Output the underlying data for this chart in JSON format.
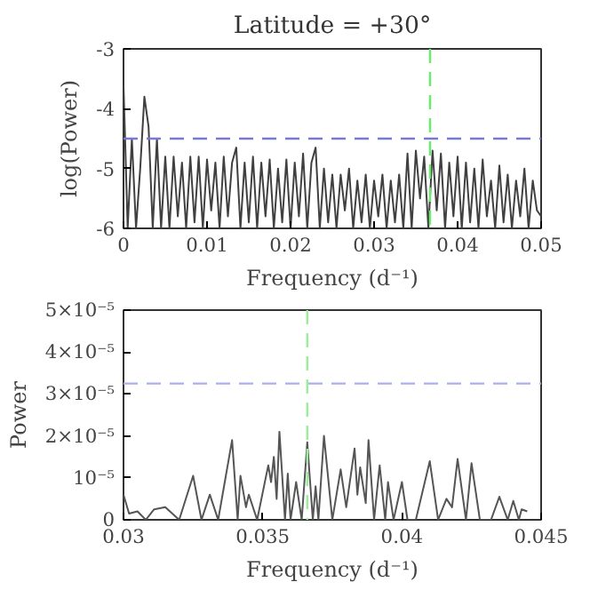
{
  "chart_data": [
    {
      "type": "line",
      "title": "Latitude = +30°",
      "xlabel": "Frequency (d⁻¹)",
      "ylabel": "log(Power)",
      "xlim": [
        0,
        0.05
      ],
      "ylim": [
        -6,
        -3
      ],
      "xticks": [
        {
          "value": 0,
          "label": "0"
        },
        0.01,
        0.02,
        0.03,
        0.04,
        0.05
      ],
      "yticks": [
        -6,
        -5,
        -4,
        -3
      ],
      "line_style": "solid",
      "series": [
        {
          "color": "#404040",
          "x": [
            0,
            0.0005,
            0.001,
            0.0015,
            0.002,
            0.0025,
            0.003,
            0.0035,
            0.004,
            0.0045,
            0.005,
            0.0055,
            0.006,
            0.0065,
            0.007,
            0.0075,
            0.008,
            0.0085,
            0.009,
            0.0095,
            0.01,
            0.0105,
            0.011,
            0.0115,
            0.012,
            0.0125,
            0.013,
            0.0135,
            0.014,
            0.0145,
            0.015,
            0.0155,
            0.016,
            0.0165,
            0.017,
            0.0175,
            0.018,
            0.0185,
            0.019,
            0.0195,
            0.02,
            0.0205,
            0.021,
            0.0215,
            0.022,
            0.0225,
            0.023,
            0.0235,
            0.024,
            0.0245,
            0.025,
            0.0255,
            0.026,
            0.0265,
            0.027,
            0.0275,
            0.028,
            0.0285,
            0.029,
            0.0295,
            0.03,
            0.0305,
            0.031,
            0.0315,
            0.032,
            0.0325,
            0.033,
            0.0335,
            0.034,
            0.0345,
            0.035,
            0.0355,
            0.036,
            0.0365,
            0.037,
            0.0375,
            0.038,
            0.0385,
            0.039,
            0.0395,
            0.04,
            0.0405,
            0.041,
            0.0415,
            0.042,
            0.0425,
            0.043,
            0.0435,
            0.044,
            0.0445,
            0.045,
            0.0455,
            0.046,
            0.0465,
            0.047,
            0.0475,
            0.048,
            0.0485,
            0.049,
            0.0495,
            0.05
          ],
          "values": [
            -3.6,
            -6,
            -4.5,
            -6,
            -5.0,
            -3.8,
            -4.3,
            -6,
            -4.5,
            -6,
            -4.8,
            -6,
            -4.8,
            -5.8,
            -4.9,
            -6,
            -4.8,
            -5.9,
            -4.8,
            -6,
            -4.85,
            -5.7,
            -4.9,
            -6,
            -4.8,
            -5.8,
            -4.9,
            -4.65,
            -6,
            -4.9,
            -5.9,
            -4.8,
            -6,
            -4.9,
            -5.8,
            -4.85,
            -6,
            -5.0,
            -5.9,
            -4.85,
            -6,
            -4.9,
            -5.8,
            -4.75,
            -6,
            -4.9,
            -4.65,
            -6,
            -5.0,
            -5.9,
            -5.1,
            -6,
            -5.1,
            -5.7,
            -5.0,
            -6,
            -5.2,
            -5.9,
            -5.1,
            -6,
            -5.2,
            -5.8,
            -5.1,
            -6,
            -5.2,
            -5.9,
            -5.1,
            -6,
            -4.75,
            -6,
            -4.7,
            -5.5,
            -4.8,
            -6,
            -4.7,
            -5.7,
            -4.75,
            -6,
            -4.9,
            -5.8,
            -4.8,
            -6,
            -4.9,
            -5.9,
            -5.0,
            -6,
            -4.85,
            -5.8,
            -5.2,
            -6,
            -4.95,
            -5.9,
            -5.1,
            -6,
            -5.2,
            -5.8,
            -5.0,
            -6,
            -5.2,
            -5.7,
            -5.8
          ]
        }
      ],
      "ref_lines": [
        {
          "axis": "y",
          "value": -4.5,
          "color": "#7777dd",
          "line_style": "dashed"
        },
        {
          "axis": "x",
          "value": 0.0367,
          "color": "#66ee66",
          "line_style": "dashed"
        }
      ]
    },
    {
      "type": "line",
      "xlabel": "Frequency (d⁻¹)",
      "ylabel": "Power",
      "xlim": [
        0.03,
        0.045
      ],
      "ylim": [
        0,
        5e-05
      ],
      "xticks": [
        0.03,
        0.035,
        0.04,
        0.045
      ],
      "yticks": [
        {
          "value": 0,
          "label": "0"
        },
        {
          "value": 1e-05,
          "label": "10⁻⁵"
        },
        {
          "value": 2e-05,
          "label": "2×10⁻⁵"
        },
        {
          "value": 3e-05,
          "label": "3×10⁻⁵"
        },
        {
          "value": 4e-05,
          "label": "4×10⁻⁵"
        },
        {
          "value": 5e-05,
          "label": "5×10⁻⁵"
        }
      ],
      "line_style": "solid",
      "series": [
        {
          "color": "#555555",
          "x": [
            0.03,
            0.0302,
            0.0305,
            0.0308,
            0.0311,
            0.0315,
            0.032,
            0.0325,
            0.0328,
            0.0331,
            0.0334,
            0.0339,
            0.0341,
            0.0342,
            0.0344,
            0.0345,
            0.0348,
            0.0352,
            0.0353,
            0.0354,
            0.0355,
            0.0356,
            0.0358,
            0.0359,
            0.036,
            0.0362,
            0.0364,
            0.0366,
            0.0368,
            0.0369,
            0.037,
            0.0372,
            0.0375,
            0.0378,
            0.038,
            0.0383,
            0.0384,
            0.0385,
            0.0387,
            0.0388,
            0.039,
            0.0392,
            0.0394,
            0.0395,
            0.0397,
            0.04,
            0.0402,
            0.0405,
            0.041,
            0.0413,
            0.0416,
            0.0418,
            0.042,
            0.0423,
            0.0425,
            0.0428,
            0.0432,
            0.0435,
            0.0438,
            0.044,
            0.0442,
            0.0443,
            0.0445
          ],
          "values": [
            6e-06,
            1.5e-06,
            2e-06,
            0,
            2.5e-06,
            3e-06,
            0,
            1.05e-05,
            0,
            6e-06,
            0,
            1.9e-05,
            0,
            1.05e-05,
            3e-06,
            6e-06,
            0,
            1.3e-05,
            9e-06,
            1.5e-05,
            5e-06,
            2.1e-05,
            0,
            1.1e-05,
            0,
            9e-06,
            0,
            1.85e-05,
            0,
            8e-06,
            0,
            2e-05,
            0,
            1.2e-05,
            3e-06,
            1.7e-05,
            6e-06,
            1.25e-05,
            4e-06,
            1.9e-05,
            0,
            1.3e-05,
            0,
            9e-06,
            0,
            9e-06,
            0,
            0,
            1.4e-05,
            0,
            5e-06,
            3e-06,
            1.45e-05,
            0,
            1.35e-05,
            0,
            0,
            5.5e-06,
            0,
            4.5e-06,
            0,
            2.5e-06,
            2e-06
          ]
        }
      ],
      "ref_lines": [
        {
          "axis": "y",
          "value": 3.25e-05,
          "color": "#aab0ee",
          "line_style": "dashed"
        },
        {
          "axis": "x",
          "value": 0.0366,
          "color": "#99ee99",
          "line_style": "dashed"
        }
      ]
    }
  ]
}
